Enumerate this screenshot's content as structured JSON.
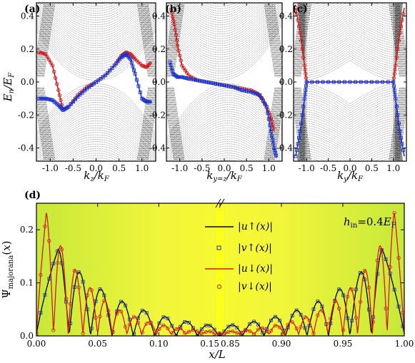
{
  "chart_data": [
    {
      "panel": "(a)",
      "type": "line",
      "xlabel": "k_z/k_F",
      "ylabel": "E_n/E_F",
      "xlim": [
        -1.3,
        1.3
      ],
      "ylim": [
        -0.48,
        0.48
      ],
      "xticks": [
        "-1.0",
        "-0.5",
        "0.0",
        "0.5",
        "1.0"
      ],
      "yticks": [
        "-0.4",
        "-0.2",
        "0.0",
        "0.2",
        "0.4"
      ],
      "series": [
        {
          "color": "#d11a1a",
          "marker": "circle",
          "x": [
            -1.25,
            -1.1,
            -0.95,
            -0.82,
            -0.72,
            -0.6,
            -0.4,
            -0.2,
            0.0,
            0.2,
            0.4,
            0.55,
            0.65,
            0.75,
            0.85,
            1.0,
            1.1,
            1.2
          ],
          "y": [
            0.18,
            0.17,
            0.1,
            -0.05,
            -0.17,
            -0.15,
            -0.08,
            -0.03,
            0.0,
            0.04,
            0.1,
            0.16,
            0.18,
            0.17,
            0.14,
            0.1,
            0.09,
            0.12
          ]
        },
        {
          "color": "#1a33cc",
          "marker": "square",
          "x": [
            -1.25,
            -1.1,
            -0.95,
            -0.82,
            -0.72,
            -0.6,
            -0.4,
            -0.2,
            0.0,
            0.2,
            0.4,
            0.55,
            0.65,
            0.75,
            0.85,
            1.0,
            1.1,
            1.2
          ],
          "y": [
            -0.1,
            -0.1,
            -0.11,
            -0.14,
            -0.17,
            -0.15,
            -0.09,
            -0.04,
            0.0,
            0.04,
            0.1,
            0.15,
            0.17,
            0.14,
            0.05,
            -0.1,
            -0.12,
            -0.12
          ]
        }
      ]
    },
    {
      "panel": "(b)",
      "type": "line",
      "xlabel": "k_y=z/k_F",
      "ylabel": "",
      "xlim": [
        -1.3,
        1.3
      ],
      "ylim": [
        -0.48,
        0.48
      ],
      "xticks": [
        "-1.0",
        "-0.5",
        "0.0",
        "0.5",
        "1.0"
      ],
      "series": [
        {
          "color": "#d11a1a",
          "marker": "circle",
          "x": [
            -1.2,
            -1.12,
            -1.05,
            -0.95,
            -0.8,
            -0.6,
            -0.4,
            -0.2,
            0.0,
            0.2,
            0.4,
            0.6,
            0.75,
            0.85,
            0.95,
            1.05,
            1.12
          ],
          "y": [
            0.44,
            0.35,
            0.22,
            0.1,
            0.04,
            0.01,
            0.0,
            -0.01,
            -0.02,
            -0.03,
            -0.04,
            -0.05,
            -0.07,
            -0.1,
            -0.15,
            -0.22,
            -0.3
          ]
        },
        {
          "color": "#1a33cc",
          "marker": "square",
          "x": [
            -1.22,
            -1.15,
            -1.05,
            -0.95,
            -0.8,
            -0.6,
            -0.4,
            -0.2,
            0.0,
            0.2,
            0.4,
            0.6,
            0.8,
            0.95,
            1.05,
            1.12,
            1.18
          ],
          "y": [
            0.12,
            0.05,
            0.03,
            0.03,
            0.02,
            0.01,
            0.0,
            -0.01,
            -0.02,
            -0.03,
            -0.05,
            -0.06,
            -0.08,
            -0.15,
            -0.3,
            -0.4,
            -0.46
          ]
        }
      ]
    },
    {
      "panel": "(c)",
      "type": "line",
      "xlabel": "k_y/k_F",
      "ylabel": "",
      "xlim": [
        -1.3,
        1.3
      ],
      "ylim": [
        -0.48,
        0.48
      ],
      "xticks": [
        "-1.0",
        "-0.5",
        "0.0",
        "0.5",
        "1.0"
      ],
      "series": [
        {
          "color": "#d11a1a",
          "marker": "circle",
          "x": [
            -1.25,
            -1.15,
            -1.05,
            -1.0,
            -0.5,
            0.0,
            0.5,
            1.0,
            1.05,
            1.15,
            1.25
          ],
          "y": [
            0.45,
            0.3,
            0.1,
            0.0,
            0.0,
            0.0,
            0.0,
            0.0,
            0.1,
            0.3,
            0.45
          ]
        },
        {
          "color": "#1a33cc",
          "marker": "square",
          "x": [
            -1.25,
            -1.15,
            -1.05,
            -1.0,
            -0.5,
            0.0,
            0.5,
            1.0,
            1.05,
            1.15,
            1.25
          ],
          "y": [
            -0.45,
            -0.3,
            -0.1,
            0.0,
            0.0,
            0.0,
            0.0,
            0.0,
            -0.1,
            -0.3,
            -0.45
          ]
        }
      ]
    },
    {
      "panel": "(d)",
      "type": "line",
      "xlabel": "x/L",
      "ylabel": "Ψ_majorana(x)",
      "annotation": "h_in=0.4E_F",
      "xlim": [
        0.0,
        1.0
      ],
      "x_axis_break_at": "0.15 → 0.85",
      "ylim": [
        0.0,
        0.25
      ],
      "xticks": [
        "0.00",
        "0.05",
        "0.10",
        "0.15",
        "0.85",
        "0.90",
        "0.95",
        "1.00"
      ],
      "yticks": [
        "0.0",
        "0.1",
        "0.2"
      ],
      "legend": [
        "|u↑(x)|",
        "|v↑(x)|",
        "|u↓(x)|",
        "|v↓(x)|"
      ],
      "legend_position": "right",
      "series": [
        {
          "name": "|u↑(x)|",
          "color": "#000000",
          "peak": 0.16,
          "decay": 0.055,
          "period": 0.0175,
          "peak_x": 0.018
        },
        {
          "name": "|v↑(x)|",
          "color": "#1a33cc",
          "peak": 0.16,
          "decay": 0.055,
          "period": 0.0175,
          "peak_x": 0.018
        },
        {
          "name": "|u↓(x)|",
          "color": "#d11a1a",
          "peak": 0.23,
          "decay": 0.038,
          "period": 0.012,
          "peak_x": 0.008
        },
        {
          "name": "|v↓(x)|",
          "color": "#d11a1a",
          "peak": 0.23,
          "decay": 0.038,
          "period": 0.012,
          "peak_x": 0.008
        }
      ]
    }
  ]
}
